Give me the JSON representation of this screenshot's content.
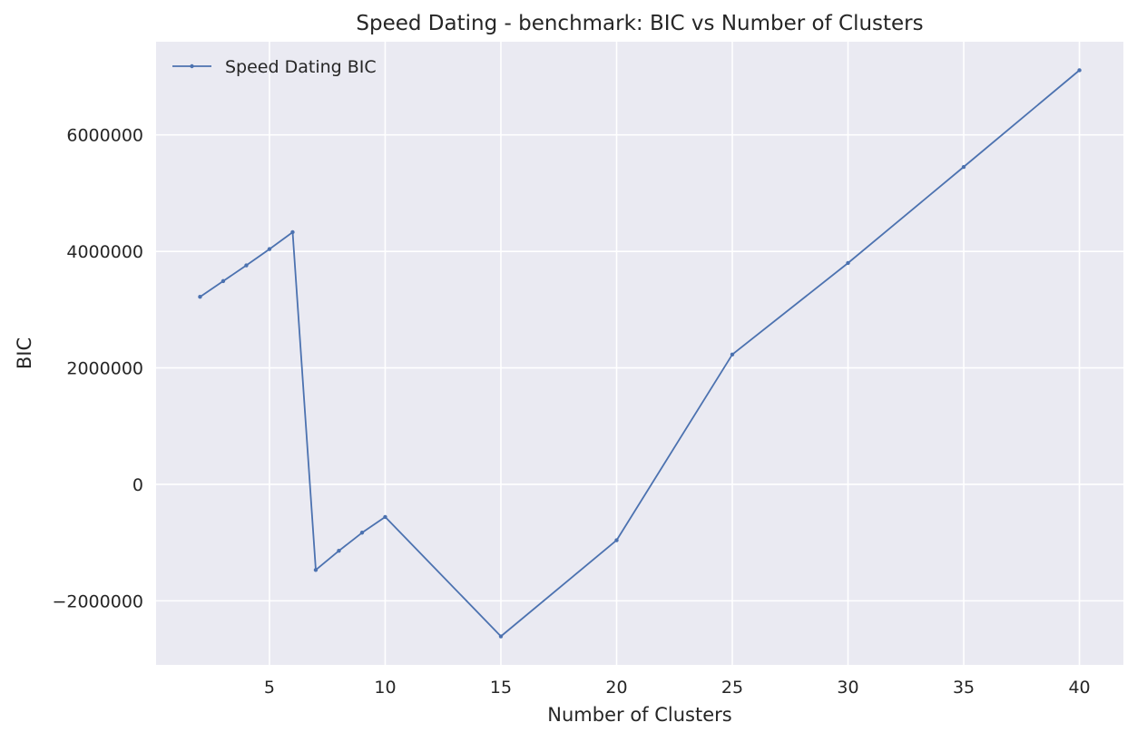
{
  "chart_data": {
    "type": "line",
    "title": "Speed Dating - benchmark: BIC vs Number of Clusters",
    "xlabel": "Number of Clusters",
    "ylabel": "BIC",
    "xlim": [
      0.1,
      41.9
    ],
    "ylim": [
      -3100000,
      7600000
    ],
    "x_ticks": [
      5,
      10,
      15,
      20,
      25,
      30,
      35,
      40
    ],
    "y_ticks": [
      -2000000,
      0,
      2000000,
      4000000,
      6000000
    ],
    "y_tick_labels": [
      "−2000000",
      "0",
      "2000000",
      "4000000",
      "6000000"
    ],
    "grid": true,
    "legend_position": "top-left",
    "series": [
      {
        "name": "Speed Dating BIC",
        "color": "#4c72b0",
        "marker": "dot",
        "x": [
          2,
          3,
          4,
          5,
          6,
          7,
          8,
          9,
          10,
          15,
          20,
          25,
          30,
          35,
          40
        ],
        "y": [
          3220000,
          3490000,
          3760000,
          4040000,
          4330000,
          -1470000,
          -1140000,
          -830000,
          -560000,
          -2610000,
          -960000,
          2230000,
          3800000,
          5450000,
          7110000
        ]
      }
    ]
  }
}
